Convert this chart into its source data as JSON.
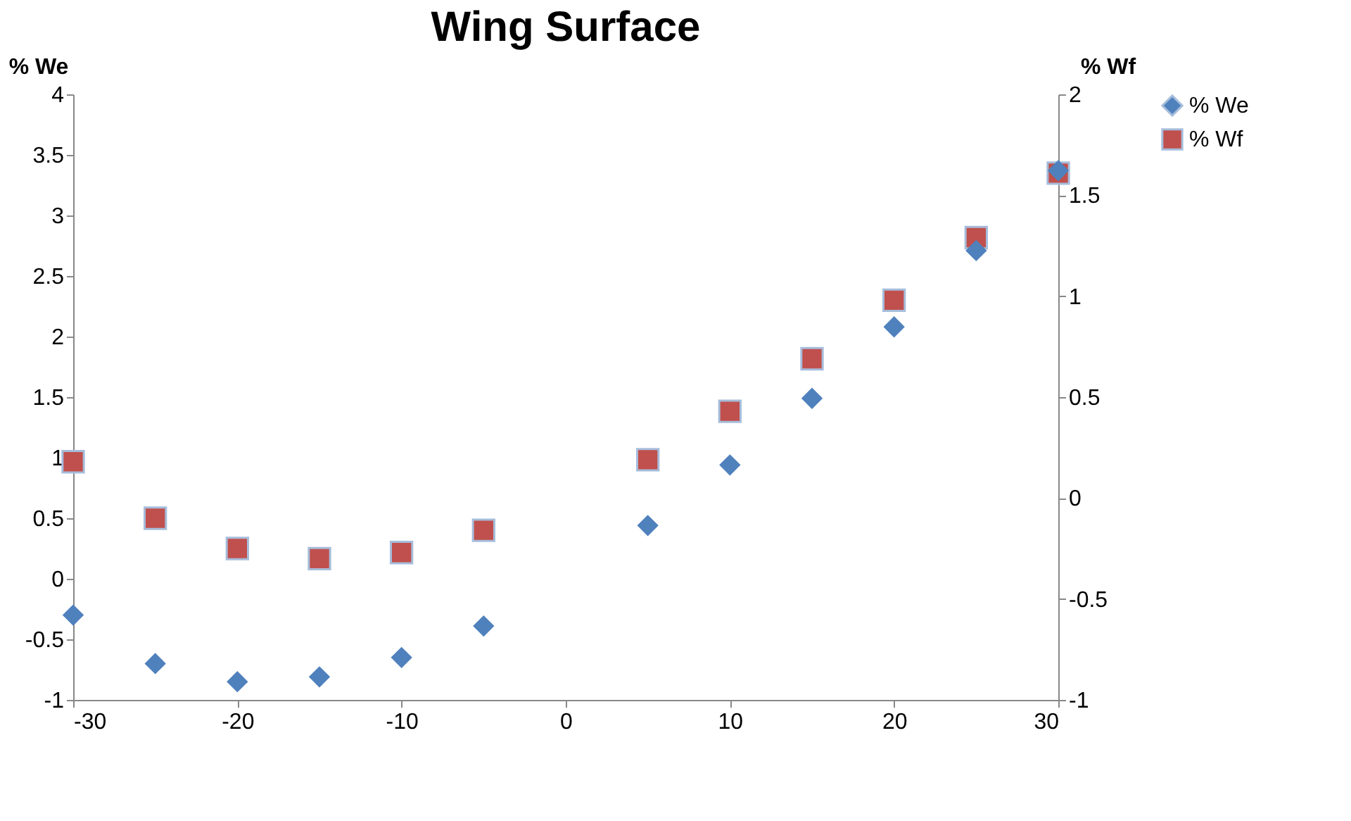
{
  "chart_data": {
    "type": "scatter",
    "title": "Wing Surface",
    "ylabel": "% We",
    "y2label": "% Wf",
    "x": [
      -30,
      -25,
      -20,
      -15,
      -10,
      -5,
      5,
      10,
      15,
      20,
      25,
      30
    ],
    "series": [
      {
        "name": "% We",
        "color": "#4f81bd",
        "marker": "diamond",
        "values": [
          -0.3,
          -0.7,
          -0.85,
          -0.81,
          -0.65,
          -0.39,
          0.44,
          0.94,
          1.49,
          2.08,
          2.71,
          3.37
        ]
      },
      {
        "name": "% Wf",
        "color": "#c0504d",
        "marker": "square",
        "axis": "y2",
        "values": [
          0.18,
          -0.1,
          -0.25,
          -0.3,
          -0.27,
          -0.16,
          0.19,
          0.43,
          0.69,
          0.98,
          1.29,
          1.61
        ]
      }
    ],
    "xlim": [
      -30,
      30
    ],
    "xticks": [
      -30,
      -20,
      -10,
      0,
      10,
      20,
      30
    ],
    "ylim": [
      -1,
      4
    ],
    "yticks": [
      -1,
      -0.5,
      0,
      0.5,
      1,
      1.5,
      2,
      2.5,
      3,
      3.5,
      4
    ],
    "y2lim": [
      -1,
      2
    ],
    "y2ticks": [
      -1,
      -0.5,
      0,
      0.5,
      1,
      1.5,
      2
    ],
    "grid": false,
    "legend": "right"
  }
}
